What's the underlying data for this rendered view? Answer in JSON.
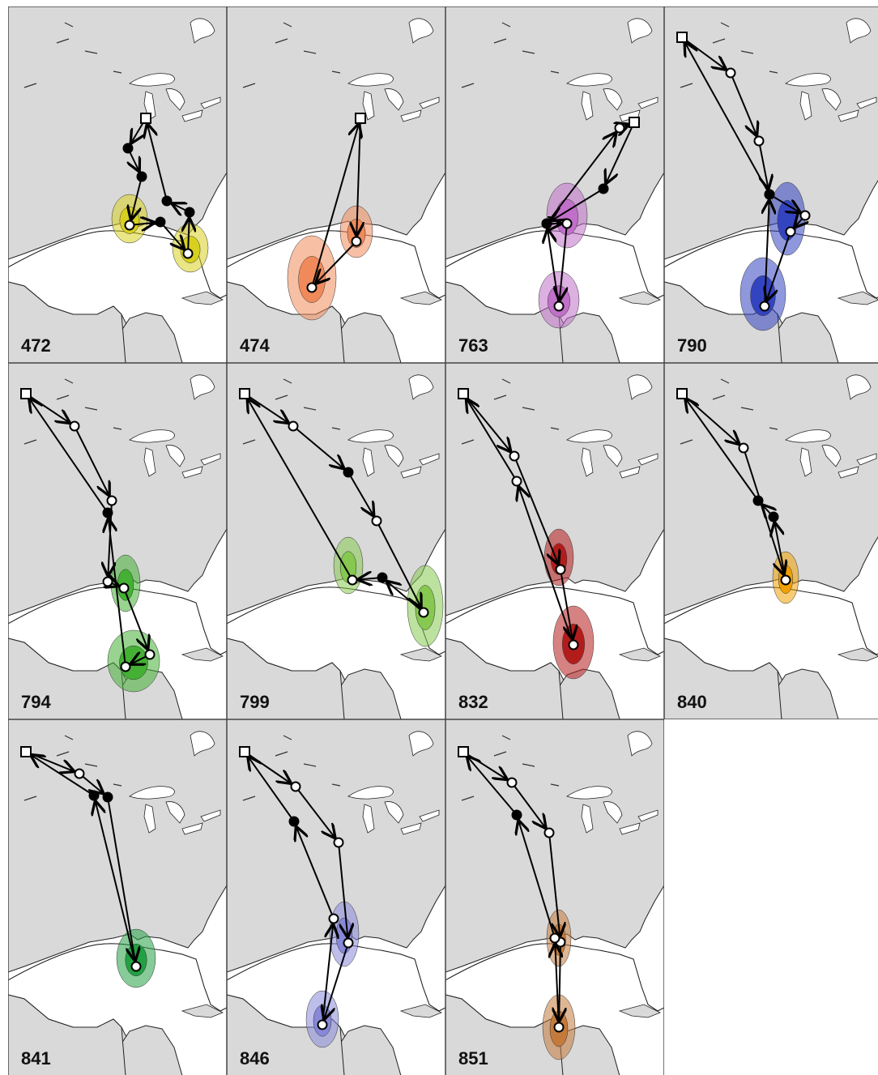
{
  "panels": [
    {
      "label": "472",
      "color": "#d8d020"
    },
    {
      "label": "474",
      "color": "#f08a5a"
    },
    {
      "label": "763",
      "color": "#c070c8"
    },
    {
      "label": "790",
      "color": "#3344c0"
    },
    {
      "label": "794",
      "color": "#44b034"
    },
    {
      "label": "799",
      "color": "#86c850"
    },
    {
      "label": "832",
      "color": "#b41c1c"
    },
    {
      "label": "840",
      "color": "#f0a000"
    },
    {
      "label": "841",
      "color": "#22a044"
    },
    {
      "label": "846",
      "color": "#8888d8"
    },
    {
      "label": "851",
      "color": "#c47a3a"
    }
  ]
}
